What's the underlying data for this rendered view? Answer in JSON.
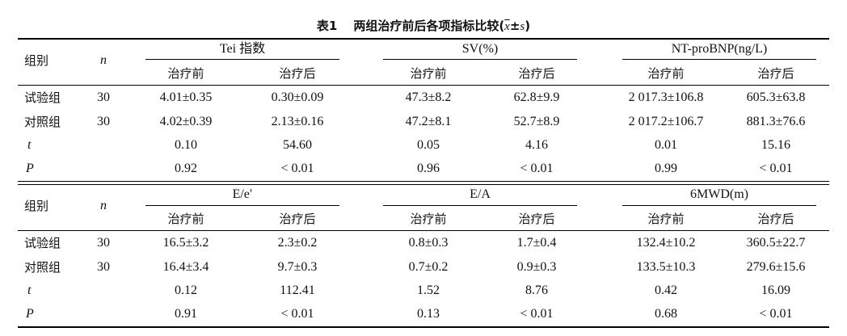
{
  "caption": {
    "label": "表1",
    "title": "两组治疗前后各项指标比较(",
    "xbar": "x",
    "pm": "±",
    "s": "s",
    "close": ")"
  },
  "sections": [
    {
      "group_header": "组别",
      "n_header": "n",
      "metrics": [
        "Tei 指数",
        "SV(%)",
        "NT-proBNP(ng/L)"
      ],
      "sub_headers": [
        "治疗前",
        "治疗后",
        "治疗前",
        "治疗后",
        "治疗前",
        "治疗后"
      ],
      "rows": [
        {
          "label": "试验组",
          "n": "30",
          "values": [
            "4.01±0.35",
            "0.30±0.09",
            "47.3±8.2",
            "62.8±9.9",
            "2 017.3±106.8",
            "605.3±63.8"
          ]
        },
        {
          "label": "对照组",
          "n": "30",
          "values": [
            "4.02±0.39",
            "2.13±0.16",
            "47.2±8.1",
            "52.7±8.9",
            "2 017.2±106.7",
            "881.3±76.6"
          ]
        },
        {
          "label": "t",
          "n": "",
          "values": [
            "0.10",
            "54.60",
            "0.05",
            "4.16",
            "0.01",
            "15.16"
          ]
        },
        {
          "label": "P",
          "n": "",
          "values": [
            "0.92",
            "< 0.01",
            "0.96",
            "< 0.01",
            "0.99",
            "< 0.01"
          ]
        }
      ]
    },
    {
      "group_header": "组别",
      "n_header": "n",
      "metrics": [
        "E/e′",
        "E/A",
        "6MWD(m)"
      ],
      "sub_headers": [
        "治疗前",
        "治疗后",
        "治疗前",
        "治疗后",
        "治疗前",
        "治疗后"
      ],
      "rows": [
        {
          "label": "试验组",
          "n": "30",
          "values": [
            "16.5±3.2",
            "2.3±0.2",
            "0.8±0.3",
            "1.7±0.4",
            "132.4±10.2",
            "360.5±22.7"
          ]
        },
        {
          "label": "对照组",
          "n": "30",
          "values": [
            "16.4±3.4",
            "9.7±0.3",
            "0.7±0.2",
            "0.9±0.3",
            "133.5±10.3",
            "279.6±15.6"
          ]
        },
        {
          "label": "t",
          "n": "",
          "values": [
            "0.12",
            "112.41",
            "1.52",
            "8.76",
            "0.42",
            "16.09"
          ]
        },
        {
          "label": "P",
          "n": "",
          "values": [
            "0.91",
            "< 0.01",
            "0.13",
            "< 0.01",
            "0.68",
            "< 0.01"
          ]
        }
      ]
    }
  ]
}
